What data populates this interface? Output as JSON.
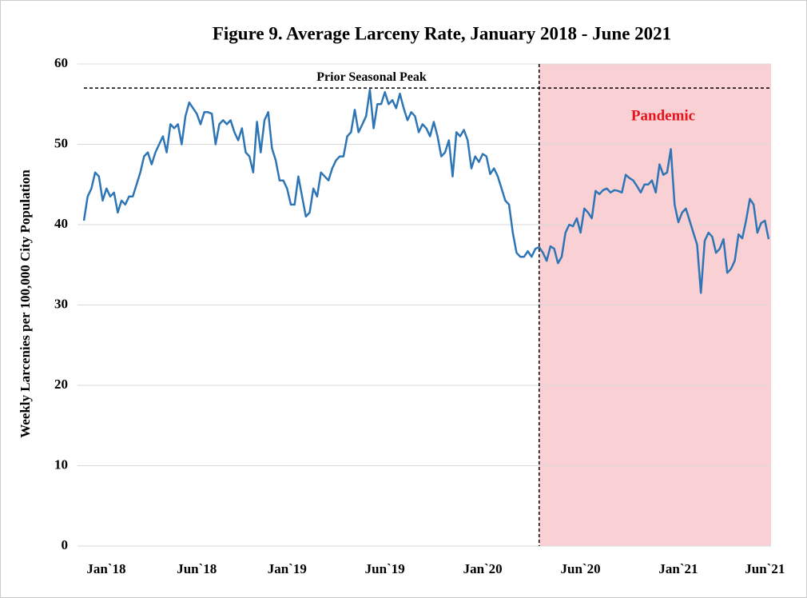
{
  "chart_data": {
    "type": "line",
    "title": "Figure 9. Average Larceny Rate, January 2018 - June 2021",
    "ylabel": "Weekly Larcenies per 100,000 City Population",
    "xlim": [
      0,
      182
    ],
    "xticks": [
      {
        "value": 7,
        "label": "Jan`18"
      },
      {
        "value": 30,
        "label": "Jun`18"
      },
      {
        "value": 54,
        "label": "Jan`19"
      },
      {
        "value": 80,
        "label": "Jun`19"
      },
      {
        "value": 106,
        "label": "Jan`20"
      },
      {
        "value": 132,
        "label": "Jun`20"
      },
      {
        "value": 158,
        "label": "Jan`21"
      },
      {
        "value": 181,
        "label": "Jun`21"
      }
    ],
    "ylim": [
      0,
      60
    ],
    "yticks": [
      0,
      10,
      20,
      30,
      40,
      50,
      60
    ],
    "grid": true,
    "series": [
      {
        "name": "Average Larceny Rate",
        "color": "#2e75b6",
        "values": [
          40.5,
          43.5,
          44.5,
          46.5,
          46,
          43,
          44.5,
          43.5,
          44,
          41.5,
          43,
          42.5,
          43.5,
          43.5,
          45,
          46.5,
          48.5,
          49,
          47.5,
          49,
          50,
          51,
          49,
          52.5,
          52,
          52.5,
          50,
          53.5,
          55.2,
          54.5,
          53.8,
          52.5,
          54,
          54,
          53.8,
          50,
          52.5,
          53,
          52.5,
          53,
          51.5,
          50.5,
          52,
          49,
          48.5,
          46.5,
          52.8,
          49,
          53,
          54,
          49.5,
          48,
          45.5,
          45.5,
          44.5,
          42.5,
          42.5,
          46,
          43.5,
          41,
          41.5,
          44.5,
          43.5,
          46.5,
          46,
          45.5,
          47,
          48,
          48.5,
          48.5,
          51,
          51.5,
          54.3,
          51.5,
          52.5,
          53.5,
          56.8,
          52,
          55,
          55,
          56.5,
          55,
          55.5,
          54.5,
          56.3,
          54.5,
          53,
          54,
          53.5,
          51.5,
          52.5,
          52,
          51,
          52.8,
          51,
          48.5,
          49,
          50.5,
          46,
          51.5,
          51,
          51.8,
          50.5,
          47,
          48.5,
          47.8,
          48.8,
          48.5,
          46.3,
          47,
          46,
          44.5,
          43,
          42.5,
          39,
          36.5,
          36,
          36,
          36.7,
          36,
          37,
          37.2,
          36.5,
          35.5,
          37.3,
          37,
          35.2,
          36,
          39,
          40,
          39.8,
          40.8,
          39,
          42,
          41.5,
          40.8,
          44.2,
          43.8,
          44.3,
          44.5,
          44,
          44.3,
          44.2,
          44,
          46.2,
          45.8,
          45.5,
          44.8,
          44,
          45,
          45,
          45.5,
          44,
          47.5,
          46.2,
          46.5,
          49.4,
          42.5,
          40.3,
          41.5,
          42,
          40.5,
          39,
          37.5,
          31.5,
          38,
          39,
          38.5,
          36.5,
          37,
          38.2,
          34,
          34.5,
          35.5,
          38.8,
          38.3,
          40.5,
          43.2,
          42.5,
          39,
          40.2,
          40.5,
          38.2
        ]
      }
    ],
    "peak": {
      "label": "Prior Seasonal Peak",
      "value": 57
    },
    "pandemic": {
      "label": "Pandemic",
      "start": 121,
      "color": "#f9d0d3"
    }
  }
}
